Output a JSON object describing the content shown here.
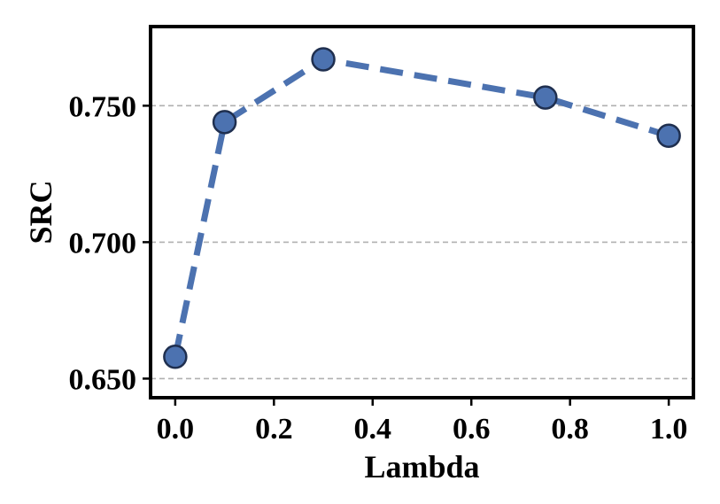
{
  "chart_data": {
    "type": "line",
    "title": "",
    "xlabel": "Lambda",
    "ylabel": "SRC",
    "x": [
      0.0,
      0.1,
      0.3,
      0.75,
      1.0
    ],
    "series": [
      {
        "values": [
          0.658,
          0.744,
          0.767,
          0.753,
          0.739
        ],
        "color": "#4C72B0",
        "line_style": "dashed",
        "marker": "circle",
        "marker_edge_color": "#1F2F4F"
      }
    ],
    "xlim": [
      -0.05,
      1.05
    ],
    "ylim": [
      0.643,
      0.779
    ],
    "x_ticks": [
      0.0,
      0.2,
      0.4,
      0.6,
      0.8,
      1.0
    ],
    "x_tick_labels": [
      "0.0",
      "0.2",
      "0.4",
      "0.6",
      "0.8",
      "1.0"
    ],
    "y_ticks": [
      0.65,
      0.7,
      0.75
    ],
    "y_tick_labels": [
      "0.650",
      "0.700",
      "0.750"
    ],
    "grid": "horizontal-dashed",
    "grid_color": "#B0B0B0",
    "legend": "none"
  }
}
